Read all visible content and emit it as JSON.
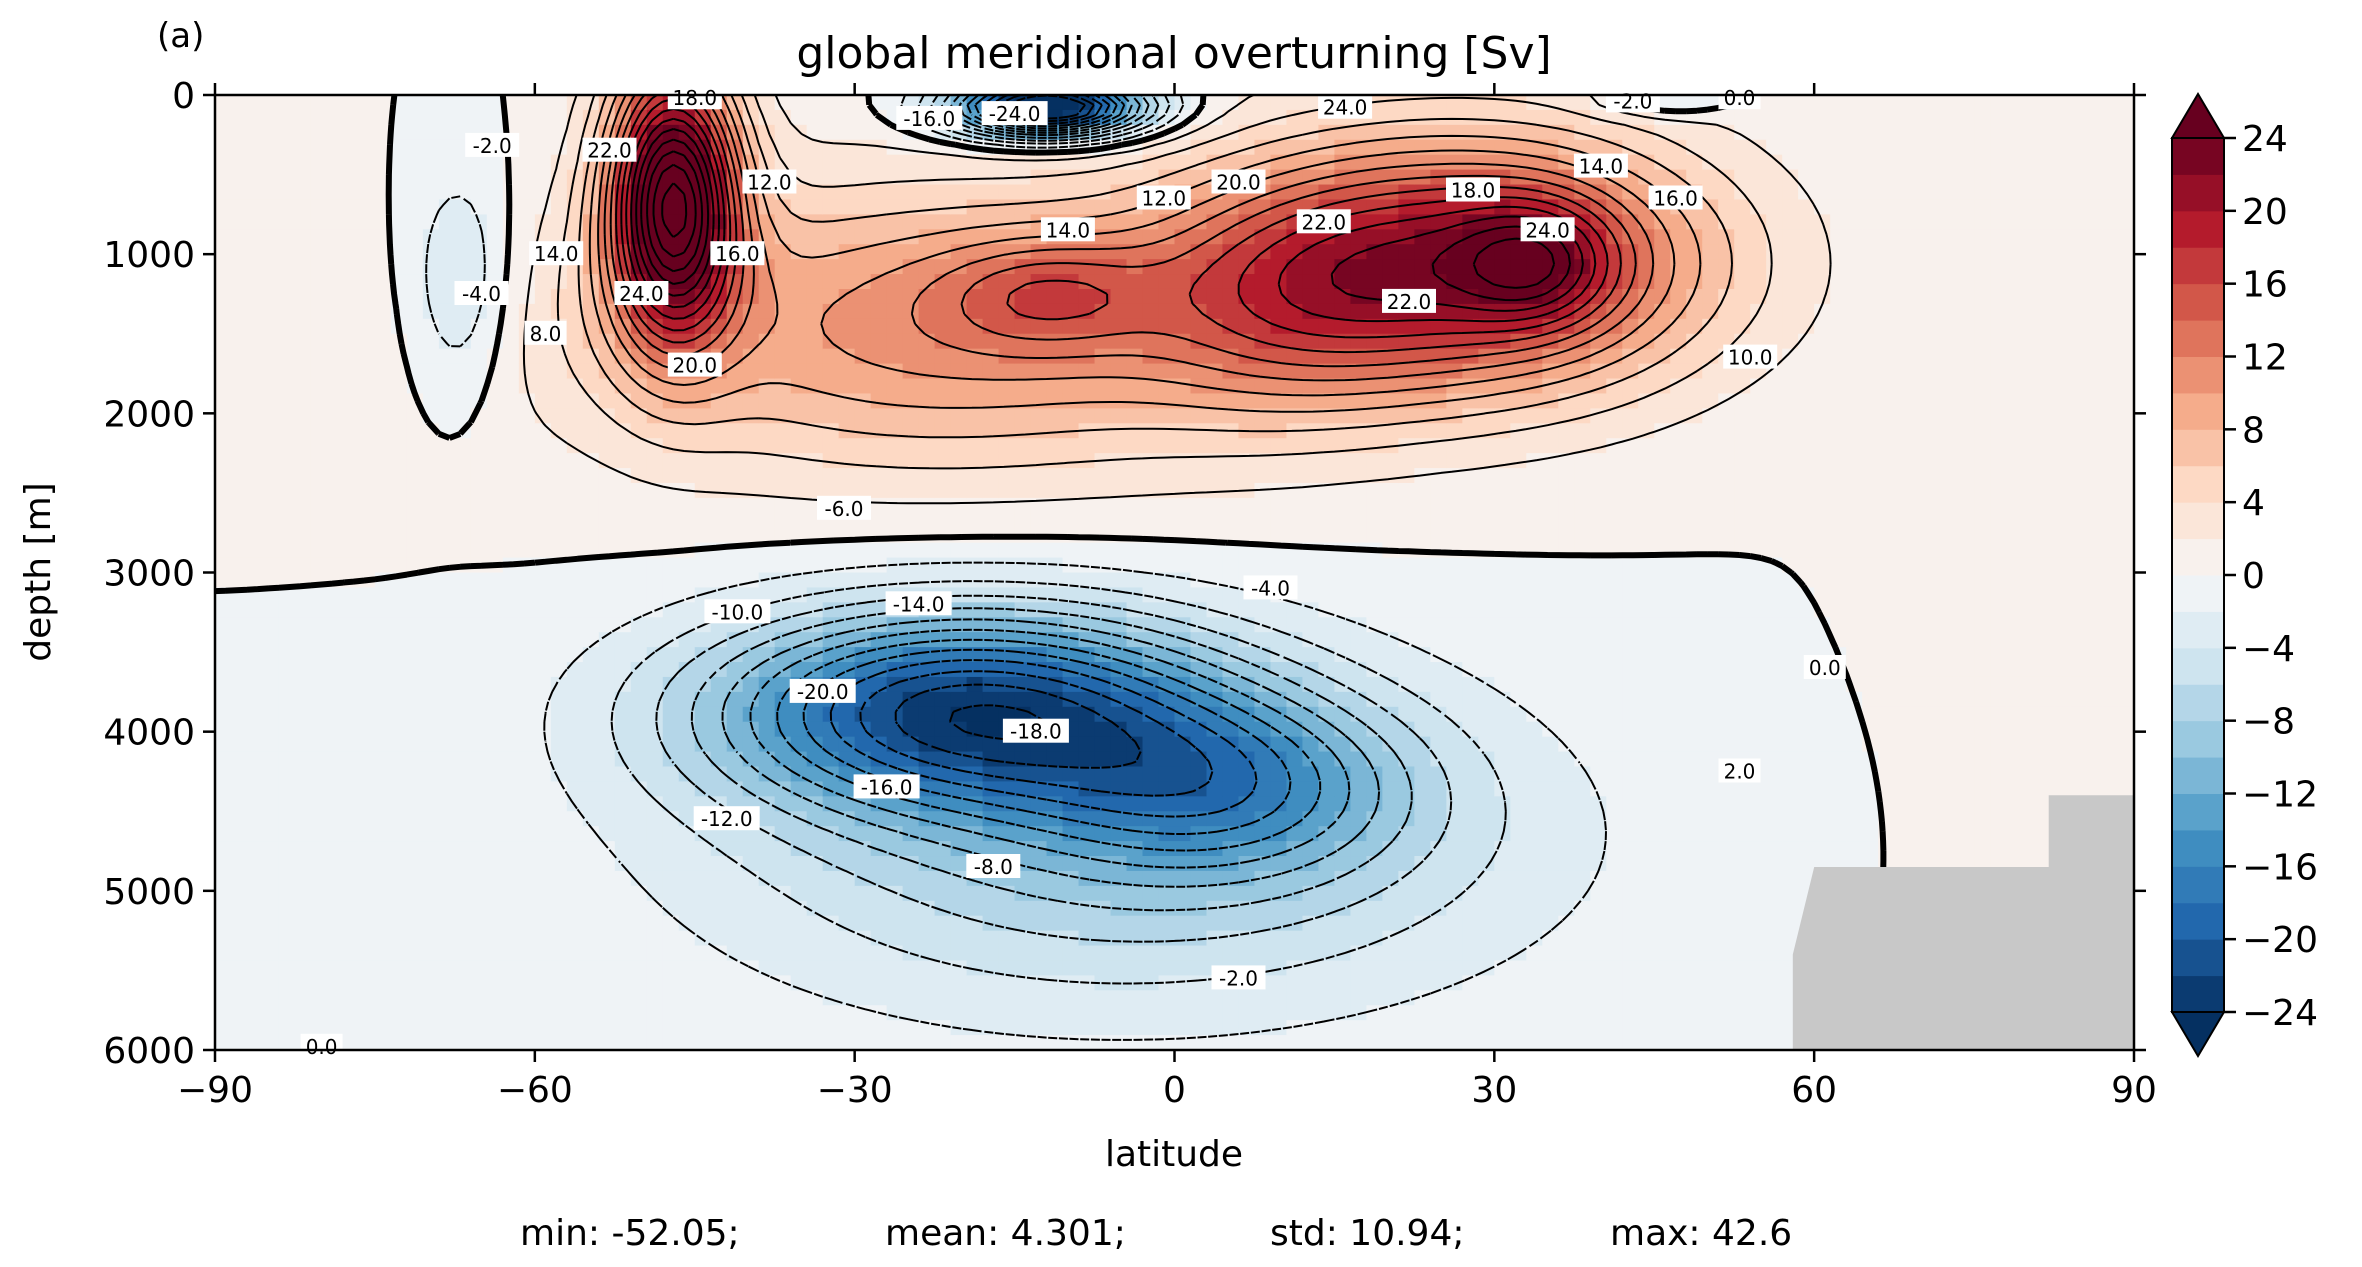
{
  "chart_data": {
    "type": "contour",
    "panel_label": "(a)",
    "title": "global meridional overturning [Sv]",
    "xlabel": "latitude",
    "ylabel": "depth [m]",
    "xlim": [
      -90,
      90
    ],
    "ylim": [
      6000,
      0
    ],
    "x_ticks": [
      -90,
      -60,
      -30,
      0,
      30,
      60,
      90
    ],
    "x_tick_labels": [
      "−90",
      "−60",
      "−30",
      "0",
      "30",
      "60",
      "90"
    ],
    "y_ticks": [
      0,
      1000,
      2000,
      3000,
      4000,
      5000,
      6000
    ],
    "y_tick_labels": [
      "0",
      "1000",
      "2000",
      "3000",
      "4000",
      "5000",
      "6000"
    ],
    "colormap": "RdBu_r",
    "colorbar": {
      "levels": [
        -24,
        -22,
        -20,
        -18,
        -16,
        -14,
        -12,
        -10,
        -8,
        -6,
        -4,
        -2,
        0,
        2,
        4,
        6,
        8,
        10,
        12,
        14,
        16,
        18,
        20,
        22,
        24
      ],
      "ticks": [
        -24,
        -20,
        -16,
        -12,
        -8,
        -4,
        0,
        4,
        8,
        12,
        16,
        20,
        24
      ],
      "tick_labels": [
        "−24",
        "−20",
        "−16",
        "−12",
        "−8",
        "−4",
        "0",
        "4",
        "8",
        "12",
        "16",
        "20",
        "24"
      ],
      "extend": "both"
    },
    "contour_interval": 2.0,
    "land_color": "#c8c8c8",
    "contour_labels": [
      {
        "text": "18.0",
        "lat": -45,
        "depth": 20
      },
      {
        "text": "22.0",
        "lat": -53,
        "depth": 350
      },
      {
        "text": "24.0",
        "lat": -50,
        "depth": 1250
      },
      {
        "text": "20.0",
        "lat": -45,
        "depth": 1700
      },
      {
        "text": "16.0",
        "lat": -41,
        "depth": 1000
      },
      {
        "text": "12.0",
        "lat": -38,
        "depth": 550
      },
      {
        "text": "14.0",
        "lat": -58,
        "depth": 1000
      },
      {
        "text": "8.0",
        "lat": -59,
        "depth": 1500
      },
      {
        "text": "-4.0",
        "lat": -65,
        "depth": 1250
      },
      {
        "text": "-2.0",
        "lat": -64,
        "depth": 320
      },
      {
        "text": "-6.0",
        "lat": -31,
        "depth": 2600
      },
      {
        "text": "-10.0",
        "lat": -41,
        "depth": 3250
      },
      {
        "text": "-14.0",
        "lat": -24,
        "depth": 3200
      },
      {
        "text": "-20.0",
        "lat": -33,
        "depth": 3750
      },
      {
        "text": "-18.0",
        "lat": -13,
        "depth": 4000
      },
      {
        "text": "-16.0",
        "lat": -27,
        "depth": 4350
      },
      {
        "text": "-12.0",
        "lat": -42,
        "depth": 4550
      },
      {
        "text": "-8.0",
        "lat": -17,
        "depth": 4850
      },
      {
        "text": "-2.0",
        "lat": 6,
        "depth": 5550
      },
      {
        "text": "-4.0",
        "lat": 9,
        "depth": 3100
      },
      {
        "text": "14.0",
        "lat": -10,
        "depth": 850
      },
      {
        "text": "12.0",
        "lat": -1,
        "depth": 650
      },
      {
        "text": "20.0",
        "lat": 6,
        "depth": 550
      },
      {
        "text": "22.0",
        "lat": 14,
        "depth": 800
      },
      {
        "text": "22.0",
        "lat": 22,
        "depth": 1300
      },
      {
        "text": "18.0",
        "lat": 28,
        "depth": 600
      },
      {
        "text": "24.0",
        "lat": 35,
        "depth": 850
      },
      {
        "text": "14.0",
        "lat": 40,
        "depth": 450
      },
      {
        "text": "16.0",
        "lat": 47,
        "depth": 650
      },
      {
        "text": "10.0",
        "lat": 54,
        "depth": 1650
      },
      {
        "text": "24.0",
        "lat": 16,
        "depth": 80
      },
      {
        "text": "-24.0",
        "lat": -15,
        "depth": 120
      },
      {
        "text": "-16.0",
        "lat": -23,
        "depth": 150
      },
      {
        "text": "-2.0",
        "lat": 43,
        "depth": 40
      },
      {
        "text": "0.0",
        "lat": 53,
        "depth": 20
      },
      {
        "text": "2.0",
        "lat": 53,
        "depth": 4250
      },
      {
        "text": "0.0",
        "lat": 61,
        "depth": 3600
      },
      {
        "text": "0.0",
        "lat": -80,
        "depth": 5980
      }
    ],
    "statistics": {
      "min": "min: -52.05;",
      "mean": "mean: 4.301;",
      "std": "std: 10.94;",
      "max": "max: 42.6"
    }
  }
}
